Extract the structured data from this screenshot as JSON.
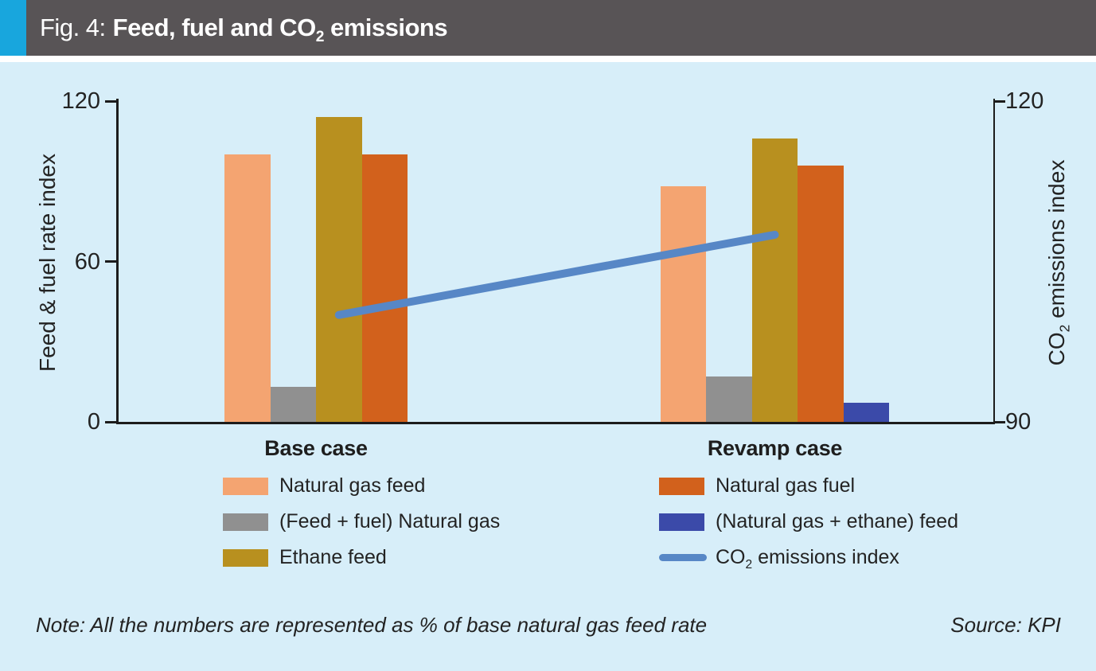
{
  "title_bar": {
    "prefix": "Fig. 4:",
    "title_pre": "Feed, fuel and CO",
    "title_sub": "2",
    "title_post": " emissions"
  },
  "colors": {
    "accent": "#18a6dd",
    "title_bar_bg": "#585456",
    "title_text": "#ffffff",
    "panel_bg": "#d7eef9",
    "axis_line": "#1c1c1c",
    "text": "#232323"
  },
  "chart_data": {
    "type": "combo_bar_line",
    "categories": [
      "Base case",
      "Revamp case"
    ],
    "bar_series": [
      {
        "name": "Natural gas feed",
        "color": "#f4a471",
        "values": [
          100,
          88
        ]
      },
      {
        "name": "(Feed + fuel) Natural gas",
        "color": "#909090",
        "values": [
          13,
          17
        ]
      },
      {
        "name": "Ethane feed",
        "color": "#b8901f",
        "values": [
          114,
          106
        ]
      },
      {
        "name": "Natural gas fuel",
        "color": "#d2611c",
        "values": [
          100,
          96
        ]
      },
      {
        "name": "(Natural gas + ethane) feed",
        "color": "#3b4aa9",
        "values": [
          null,
          7
        ]
      }
    ],
    "line_series": {
      "name_pre": "CO",
      "name_sub": "2",
      "name_post": " emissions index",
      "color": "#5787c6",
      "axis": "right",
      "values": [
        100,
        107.5
      ]
    },
    "left_axis": {
      "label": "Feed & fuel rate index",
      "range": [
        0,
        120
      ],
      "ticks": [
        0,
        60,
        120
      ]
    },
    "right_axis": {
      "label_pre": "CO",
      "label_sub": "2",
      "label_post": " emissions index",
      "range": [
        90,
        120
      ],
      "ticks": [
        90,
        120
      ]
    },
    "grid": false,
    "legend_position": "bottom two columns"
  },
  "note": "Note: All the numbers are represented as % of base natural gas feed rate",
  "source": "Source: KPI"
}
